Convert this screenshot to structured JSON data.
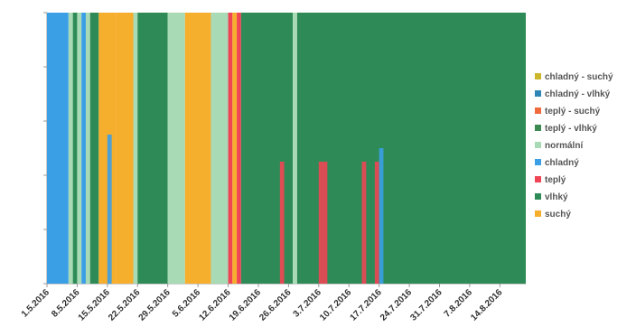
{
  "chart_data": {
    "type": "bar",
    "title": "",
    "xlabel": "",
    "ylabel": "",
    "grid": false,
    "legend_position": "right",
    "x_start": "1.5.2016",
    "x_end": "20.8.2016",
    "x_tick_labels": [
      "1.5.2016",
      "8.5.2016",
      "15.5.2016",
      "22.5.2016",
      "29.5.2016",
      "5.6.2016",
      "12.6.2016",
      "19.6.2016",
      "26.6.2016",
      "3.7.2016",
      "10.7.2016",
      "17.7.2016",
      "24.7.2016",
      "31.7.2016",
      "7.8.2016",
      "14.8.2016"
    ],
    "legend": [
      {
        "key": "chladny_suchy",
        "label": "chladný - suchý",
        "color": "#ccb62c"
      },
      {
        "key": "chladny_vlhky",
        "label": "chladný - vlhký",
        "color": "#2f86b4"
      },
      {
        "key": "teply_suchy",
        "label": "teplý - suchý",
        "color": "#f06a3c"
      },
      {
        "key": "teply_vlhky",
        "label": "teplý - vlhký",
        "color": "#3c8a52"
      },
      {
        "key": "normalni",
        "label": "normální",
        "color": "#a8dab6"
      },
      {
        "key": "chladny",
        "label": "chladný",
        "color": "#3b9fe6"
      },
      {
        "key": "teply",
        "label": "teplý",
        "color": "#ef4555"
      },
      {
        "key": "vlhky",
        "label": "vlhký",
        "color": "#2e8b57"
      },
      {
        "key": "suchy",
        "label": "suchý",
        "color": "#f6ae2d"
      }
    ],
    "periods": [
      {
        "from": "1.5.2016",
        "to": "6.5.2016",
        "category": "chladny"
      },
      {
        "from": "6.5.2016",
        "to": "7.5.2016",
        "category": "normalni"
      },
      {
        "from": "7.5.2016",
        "to": "8.5.2016",
        "category": "vlhky"
      },
      {
        "from": "8.5.2016",
        "to": "9.5.2016",
        "category": "normalni"
      },
      {
        "from": "9.5.2016",
        "to": "10.5.2016",
        "category": "chladny"
      },
      {
        "from": "10.5.2016",
        "to": "11.5.2016",
        "category": "normalni"
      },
      {
        "from": "11.5.2016",
        "to": "13.5.2016",
        "category": "vlhky"
      },
      {
        "from": "13.5.2016",
        "to": "17.5.2016",
        "category": "suchy"
      },
      {
        "from": "17.5.2016",
        "to": "21.5.2016",
        "category": "suchy"
      },
      {
        "from": "21.5.2016",
        "to": "22.5.2016",
        "category": "normalni"
      },
      {
        "from": "22.5.2016",
        "to": "29.5.2016",
        "category": "vlhky"
      },
      {
        "from": "29.5.2016",
        "to": "2.6.2016",
        "category": "normalni"
      },
      {
        "from": "2.6.2016",
        "to": "8.6.2016",
        "category": "suchy"
      },
      {
        "from": "8.6.2016",
        "to": "12.6.2016",
        "category": "normalni"
      },
      {
        "from": "12.6.2016",
        "to": "13.6.2016",
        "category": "teply"
      },
      {
        "from": "13.6.2016",
        "to": "14.6.2016",
        "category": "suchy"
      },
      {
        "from": "14.6.2016",
        "to": "15.6.2016",
        "category": "teply"
      },
      {
        "from": "15.6.2016",
        "to": "27.6.2016",
        "category": "vlhky"
      },
      {
        "from": "27.6.2016",
        "to": "28.6.2016",
        "category": "normalni"
      },
      {
        "from": "28.6.2016",
        "to": "20.8.2016",
        "category": "vlhky"
      }
    ],
    "partial_day_bars": [
      {
        "date": "15.5.2016",
        "category": "chladny",
        "value": 0.55
      },
      {
        "date": "24.6.2016",
        "category": "teply",
        "value": 0.45
      },
      {
        "date": "3.7.2016",
        "category": "teply",
        "value": 0.45
      },
      {
        "date": "4.7.2016",
        "category": "teply",
        "value": 0.45
      },
      {
        "date": "13.7.2016",
        "category": "teply",
        "value": 0.45
      },
      {
        "date": "16.7.2016",
        "category": "teply",
        "value": 0.45
      },
      {
        "date": "17.7.2016",
        "category": "chladny",
        "value": 0.5
      }
    ]
  }
}
